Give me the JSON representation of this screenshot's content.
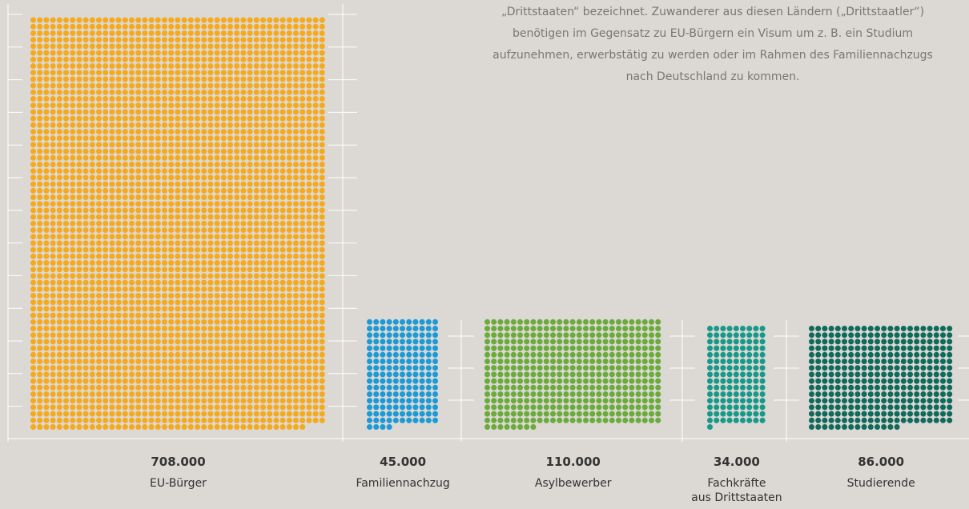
{
  "intro_text": [
    "„Drittstaaten“ bezeichnet. Zuwanderer aus diesen Ländern („Drittstaatler“)",
    "benötigen im Gegensatz zu EU-Bürgern ein Visum um z. B. ein Studium",
    "aufzunehmen, erwerbstätig zu werden oder im Rahmen des Familiennachzugs",
    "nach Deutschland zu kommen."
  ],
  "chart_data": {
    "type": "dot-matrix",
    "categories": [
      "EU-Bürger",
      "Familiennachzug",
      "Asylbewerber",
      "Fachkräfte\naus Drittstaaten",
      "Studierende"
    ],
    "values": [
      708000,
      45000,
      110000,
      34000,
      86000
    ],
    "value_labels": [
      "708.000",
      "45.000",
      "110.000",
      "34.000",
      "86.000"
    ],
    "colors": [
      "#f5a91c",
      "#1b9ad6",
      "#6aab3b",
      "#17998a",
      "#0f6a5c"
    ]
  }
}
